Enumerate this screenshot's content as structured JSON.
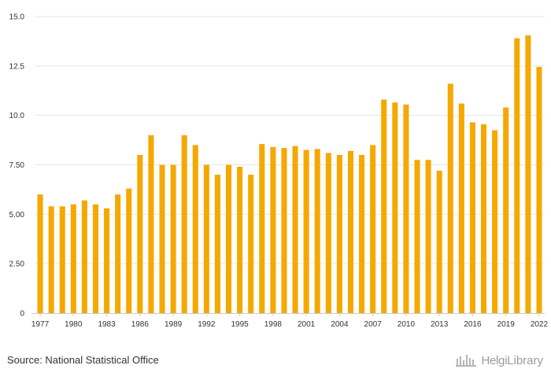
{
  "chart_data": {
    "type": "bar",
    "title": "",
    "xlabel": "",
    "ylabel": "",
    "ylim": [
      0,
      15
    ],
    "yticks": [
      0,
      2.5,
      5,
      7.5,
      10,
      12.5,
      15
    ],
    "ytick_labels": [
      "0",
      "2.50",
      "5.00",
      "7.50",
      "10.0",
      "12.5",
      "15.0"
    ],
    "xtick_labels": [
      "1977",
      "1980",
      "1983",
      "1986",
      "1989",
      "1992",
      "1995",
      "1998",
      "2001",
      "2004",
      "2007",
      "2010",
      "2013",
      "2016",
      "2019",
      "2022"
    ],
    "grid": true,
    "bar_color": "#F5A800",
    "categories": [
      "1977",
      "1978",
      "1979",
      "1980",
      "1981",
      "1982",
      "1983",
      "1984",
      "1985",
      "1986",
      "1987",
      "1988",
      "1989",
      "1990",
      "1991",
      "1992",
      "1993",
      "1994",
      "1995",
      "1996",
      "1997",
      "1998",
      "1999",
      "2000",
      "2001",
      "2002",
      "2003",
      "2004",
      "2005",
      "2006",
      "2007",
      "2008",
      "2009",
      "2010",
      "2011",
      "2012",
      "2013",
      "2014",
      "2015",
      "2016",
      "2017",
      "2018",
      "2019",
      "2020",
      "2021",
      "2022"
    ],
    "values": [
      6.0,
      5.4,
      5.4,
      5.5,
      5.7,
      5.5,
      5.3,
      6.0,
      6.3,
      8.0,
      9.0,
      7.5,
      7.5,
      9.0,
      8.5,
      7.5,
      7.0,
      7.5,
      7.4,
      7.0,
      8.55,
      8.4,
      8.35,
      8.45,
      8.25,
      8.3,
      8.1,
      8.0,
      8.2,
      8.0,
      8.5,
      10.8,
      10.65,
      10.55,
      7.75,
      7.75,
      7.2,
      11.6,
      10.6,
      9.65,
      9.55,
      9.25,
      10.4,
      13.9,
      14.05,
      12.45
    ]
  },
  "footer": {
    "source": "Source: National Statistical Office",
    "logo_text_1": "Helgi",
    "logo_text_2": "Library",
    "logo_icon": "helgi-library-logo-icon"
  }
}
